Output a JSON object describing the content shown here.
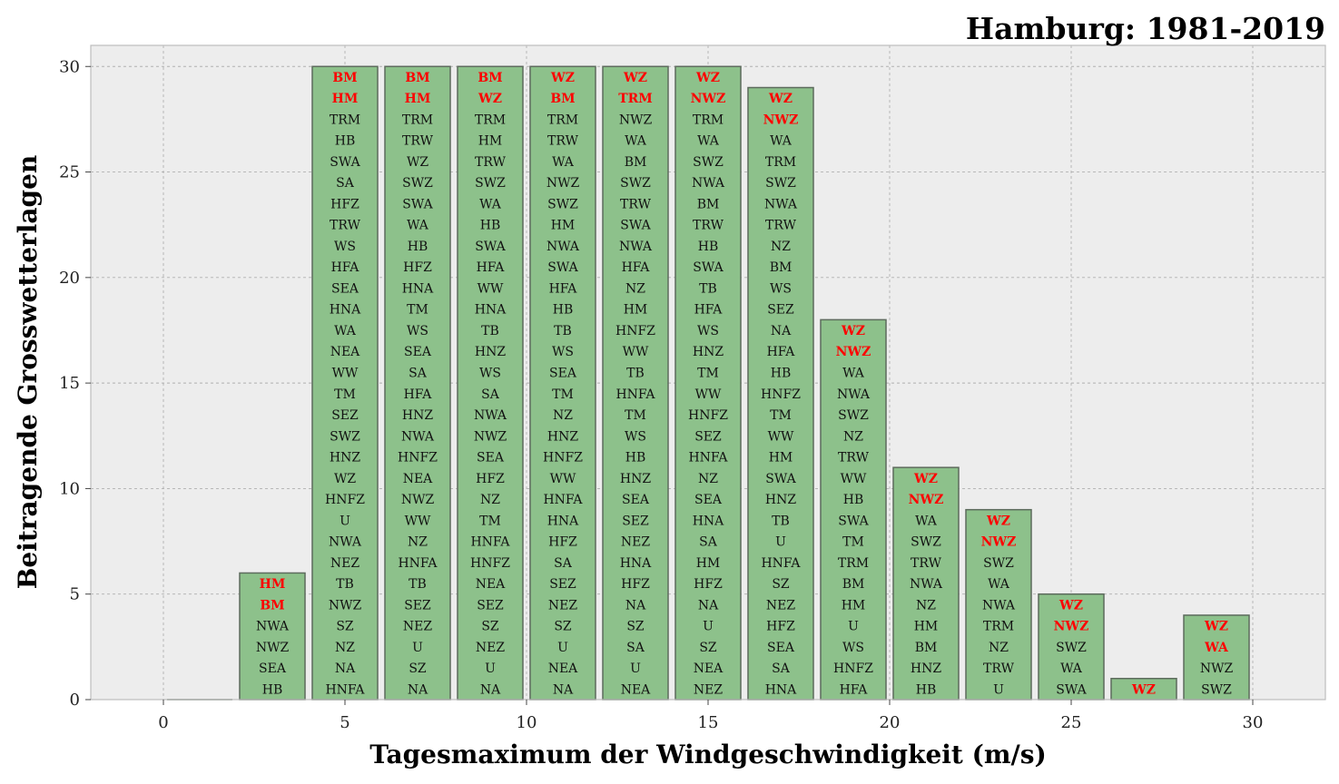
{
  "chart_data": {
    "type": "bar",
    "title": "Hamburg: 1981-2019",
    "xlabel": "Tagesmaximum der Windgeschwindigkeit (m/s)",
    "ylabel": "Beitragende Grosswetterlagen",
    "xlim": [
      -2,
      32
    ],
    "ylim": [
      0,
      31
    ],
    "xticks": [
      0,
      5,
      10,
      15,
      20,
      25,
      30
    ],
    "yticks": [
      0,
      5,
      10,
      15,
      20,
      25,
      30
    ],
    "grid": true,
    "bar_width": 1.8,
    "colors": {
      "bar_fill": "#8dc18b",
      "bar_edge": "#5d6b5d",
      "plot_bg": "#ededed",
      "grid": "#b0b0b0",
      "highlight_text": "#ff0000",
      "text": "#111111"
    },
    "x": [
      3,
      5,
      7,
      9,
      11,
      13,
      15,
      17,
      19,
      21,
      23,
      25,
      27,
      29
    ],
    "values": [
      6,
      30,
      30,
      30,
      30,
      30,
      30,
      29,
      18,
      11,
      9,
      5,
      1,
      4
    ],
    "stacks": [
      [
        "HB",
        "SEA",
        "NWZ",
        "NWA",
        "BM",
        "HM"
      ],
      [
        "HNFA",
        "NA",
        "NZ",
        "SZ",
        "NWZ",
        "TB",
        "NEZ",
        "NWA",
        "U",
        "HNFZ",
        "WZ",
        "HNZ",
        "SWZ",
        "SEZ",
        "TM",
        "WW",
        "NEA",
        "WA",
        "HNA",
        "SEA",
        "HFA",
        "WS",
        "TRW",
        "HFZ",
        "SA",
        "SWA",
        "HB",
        "TRM",
        "HM",
        "BM"
      ],
      [
        "NA",
        "SZ",
        "U",
        "NEZ",
        "SEZ",
        "TB",
        "HNFA",
        "NZ",
        "WW",
        "NWZ",
        "NEA",
        "HNFZ",
        "NWA",
        "HNZ",
        "HFA",
        "SA",
        "SEA",
        "WS",
        "TM",
        "HNA",
        "HFZ",
        "HB",
        "WA",
        "SWA",
        "SWZ",
        "WZ",
        "TRW",
        "TRM",
        "HM",
        "BM"
      ],
      [
        "NA",
        "U",
        "NEZ",
        "SZ",
        "SEZ",
        "NEA",
        "HNFZ",
        "HNFA",
        "TM",
        "NZ",
        "HFZ",
        "SEA",
        "NWZ",
        "NWA",
        "SA",
        "WS",
        "HNZ",
        "TB",
        "HNA",
        "WW",
        "HFA",
        "SWA",
        "HB",
        "WA",
        "SWZ",
        "TRW",
        "HM",
        "TRM",
        "WZ",
        "BM"
      ],
      [
        "NA",
        "NEA",
        "U",
        "SZ",
        "NEZ",
        "SEZ",
        "SA",
        "HFZ",
        "HNA",
        "HNFA",
        "WW",
        "HNFZ",
        "HNZ",
        "NZ",
        "TM",
        "SEA",
        "WS",
        "TB",
        "HB",
        "HFA",
        "SWA",
        "NWA",
        "HM",
        "SWZ",
        "NWZ",
        "WA",
        "TRW",
        "TRM",
        "BM",
        "WZ"
      ],
      [
        "NEA",
        "U",
        "SA",
        "SZ",
        "NA",
        "HFZ",
        "HNA",
        "NEZ",
        "SEZ",
        "SEA",
        "HNZ",
        "HB",
        "WS",
        "TM",
        "HNFA",
        "TB",
        "WW",
        "HNFZ",
        "HM",
        "NZ",
        "HFA",
        "NWA",
        "SWA",
        "TRW",
        "SWZ",
        "BM",
        "WA",
        "NWZ",
        "TRM",
        "WZ"
      ],
      [
        "NEZ",
        "NEA",
        "SZ",
        "U",
        "NA",
        "HFZ",
        "HM",
        "SA",
        "HNA",
        "SEA",
        "NZ",
        "HNFA",
        "SEZ",
        "HNFZ",
        "WW",
        "TM",
        "HNZ",
        "WS",
        "HFA",
        "TB",
        "SWA",
        "HB",
        "TRW",
        "BM",
        "NWA",
        "SWZ",
        "WA",
        "TRM",
        "NWZ",
        "WZ"
      ],
      [
        "HNA",
        "SA",
        "SEA",
        "HFZ",
        "NEZ",
        "SZ",
        "HNFA",
        "U",
        "TB",
        "HNZ",
        "SWA",
        "HM",
        "WW",
        "TM",
        "HNFZ",
        "HB",
        "HFA",
        "NA",
        "SEZ",
        "WS",
        "BM",
        "NZ",
        "TRW",
        "NWA",
        "SWZ",
        "TRM",
        "WA",
        "NWZ",
        "WZ"
      ],
      [
        "HFA",
        "HNFZ",
        "WS",
        "U",
        "HM",
        "BM",
        "TRM",
        "TM",
        "SWA",
        "HB",
        "WW",
        "TRW",
        "NZ",
        "SWZ",
        "NWA",
        "WA",
        "NWZ",
        "WZ"
      ],
      [
        "HB",
        "HNZ",
        "BM",
        "HM",
        "NZ",
        "NWA",
        "TRW",
        "SWZ",
        "WA",
        "NWZ",
        "WZ"
      ],
      [
        "U",
        "TRW",
        "NZ",
        "TRM",
        "NWA",
        "WA",
        "SWZ",
        "NWZ",
        "WZ"
      ],
      [
        "SWA",
        "WA",
        "SWZ",
        "NWZ",
        "WZ"
      ],
      [
        "WZ"
      ],
      [
        "SWZ",
        "NWZ",
        "WA",
        "WZ"
      ]
    ],
    "highlight_counts": [
      2,
      2,
      2,
      2,
      2,
      2,
      2,
      2,
      2,
      2,
      2,
      2,
      1,
      2
    ]
  }
}
